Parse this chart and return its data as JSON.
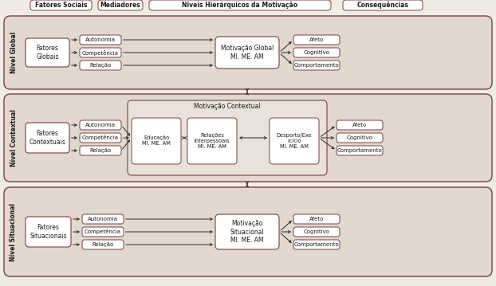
{
  "bg_color": "#f0ebe4",
  "box_face": "#ffffff",
  "box_edge": "#7a4040",
  "level_bg": "#e2d8ce",
  "arrow_color": "#2a2a2a",
  "text_color": "#1a1a1a",
  "headers": [
    "Fatores Sociais",
    "Mediadores",
    "Niveis Hierárquicos da Motivação",
    "Consequências"
  ],
  "level_labels": [
    "Nível Global",
    "Nível Contextual",
    "Nível Situacional"
  ],
  "med_labels": [
    "Autonomia",
    "Competência",
    "Relação"
  ],
  "cons_labels": [
    "Afeto",
    "Cognitivo",
    "Comportamento"
  ],
  "fatores_labels": [
    "Fatores\nGlobais",
    "Fatores\nContextuais",
    "Fatores\nSituacionais"
  ],
  "central_labels": [
    "Motivação Global\nMI. ME. AM",
    "",
    "Motivação\nSituacional\nMI. ME. AM"
  ],
  "ctx_label": "Motivação Contextual",
  "ctx_boxes": [
    "Educação\nMI. ME. AM",
    "Relações\nInterpessoais\nMI. ME. AM",
    "Desporto/Exe\nrcício\nMI. ME. AM"
  ]
}
